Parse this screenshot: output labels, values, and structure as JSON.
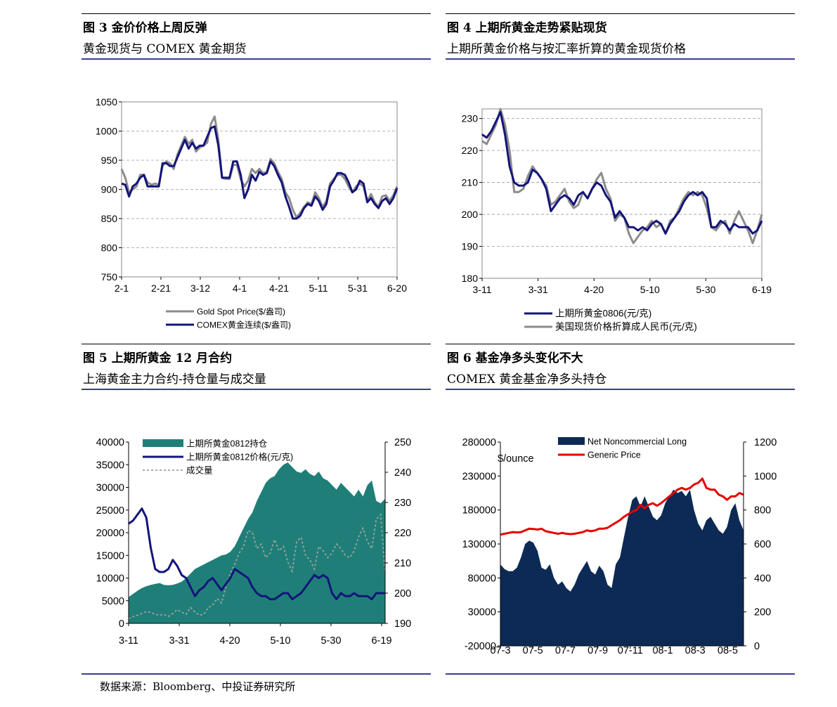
{
  "panels": [
    {
      "title": "图 3 金价价格上周反弹",
      "subtitle": "黄金现货与 COMEX 黄金期货",
      "chart_data": {
        "type": "line",
        "x_ticks": [
          "2-1",
          "2-21",
          "3-12",
          "4-1",
          "4-21",
          "5-11",
          "5-31",
          "6-20"
        ],
        "y_ticks": [
          750,
          800,
          850,
          900,
          950,
          1000,
          1050
        ],
        "ylim": [
          750,
          1050
        ],
        "grid": true,
        "legend_position": "bottom",
        "series": [
          {
            "name": "Gold Spot Price($/盎司)",
            "color": "#8c8c8c",
            "values": [
              935,
              920,
              895,
              900,
              905,
              925,
              925,
              912,
              908,
              910,
              908,
              940,
              948,
              945,
              935,
              960,
              975,
              990,
              978,
              985,
              965,
              972,
              975,
              980,
              1012,
              1025,
              985,
              920,
              918,
              918,
              942,
              942,
              918,
              905,
              915,
              935,
              928,
              935,
              928,
              930,
              952,
              945,
              930,
              918,
              895,
              885,
              865,
              852,
              860,
              870,
              878,
              875,
              895,
              885,
              870,
              880,
              910,
              918,
              925,
              925,
              918,
              905,
              895,
              905,
              910,
              905,
              880,
              892,
              878,
              870,
              888,
              890,
              880,
              890,
              905
            ]
          },
          {
            "name": "COMEX黄金连续($/盎司)",
            "color": "#14147a",
            "values": [
              910,
              908,
              888,
              905,
              910,
              920,
              925,
              905,
              905,
              905,
              905,
              945,
              945,
              940,
              940,
              955,
              970,
              985,
              970,
              980,
              970,
              975,
              975,
              990,
              1005,
              1008,
              975,
              920,
              920,
              920,
              948,
              948,
              925,
              885,
              900,
              925,
              915,
              930,
              925,
              928,
              948,
              940,
              925,
              912,
              888,
              870,
              850,
              850,
              855,
              868,
              875,
              872,
              888,
              880,
              865,
              875,
              905,
              915,
              928,
              928,
              925,
              912,
              895,
              900,
              915,
              910,
              878,
              885,
              875,
              868,
              880,
              885,
              875,
              885,
              902
            ]
          }
        ]
      }
    },
    {
      "title": "图 4 上期所黄金走势紧贴现货",
      "subtitle": "上期所黄金价格与按汇率折算的黄金现货价格",
      "chart_data": {
        "type": "line",
        "x_ticks": [
          "3-11",
          "3-31",
          "4-20",
          "5-10",
          "5-30",
          "6-19"
        ],
        "y_ticks": [
          180,
          190,
          200,
          210,
          220,
          230
        ],
        "ylim": [
          180,
          233
        ],
        "grid": true,
        "legend_position": "bottom",
        "series": [
          {
            "name": "上期所黄金0806(元/克)",
            "color": "#14147a",
            "values": [
              225,
              224,
              226,
              229,
              232,
              225,
              215,
              210,
              209,
              209,
              210,
              214,
              213,
              211,
              208,
              201,
              203,
              205,
              206,
              205,
              203,
              206,
              207,
              205,
              208,
              210,
              209,
              206,
              204,
              199,
              201,
              199,
              196,
              196,
              195,
              196,
              195,
              197,
              198,
              197,
              194,
              197,
              199,
              201,
              204,
              206,
              207,
              206,
              207,
              205,
              196,
              196,
              198,
              197,
              195,
              197,
              196,
              196,
              196,
              194,
              195,
              198
            ]
          },
          {
            "name": "美国现货价格折算成人民币(元/克)",
            "color": "#8c8c8c",
            "values": [
              223,
              222,
              225,
              228,
              233,
              228,
              220,
              207,
              207,
              208,
              212,
              215,
              213,
              211,
              209,
              203,
              204,
              206,
              208,
              204,
              202,
              203,
              207,
              205,
              208,
              211,
              213,
              208,
              205,
              198,
              200,
              199,
              194,
              191,
              193,
              195,
              196,
              198,
              196,
              197,
              194,
              198,
              199,
              202,
              205,
              207,
              206,
              207,
              206,
              202,
              196,
              195,
              197,
              198,
              194,
              198,
              201,
              198,
              195,
              191,
              195,
              200
            ]
          }
        ]
      }
    },
    {
      "title": "图 5 上期所黄金 12 月合约",
      "subtitle": "上海黄金主力合约-持仓量与成交量",
      "chart_data": {
        "type": "area",
        "x_ticks": [
          "3-11",
          "3-31",
          "4-20",
          "5-10",
          "5-30",
          "6-19"
        ],
        "y_ticks_left": [
          0,
          5000,
          10000,
          15000,
          20000,
          25000,
          30000,
          35000,
          40000
        ],
        "y_ticks_right": [
          190,
          200,
          210,
          220,
          230,
          240,
          250
        ],
        "ylim_left": [
          0,
          40000
        ],
        "ylim_right": [
          190,
          250
        ],
        "legend_position": "top",
        "series": [
          {
            "name": "上期所黄金0812持仓",
            "color": "#1f7f78",
            "axis": "left",
            "values": [
              5800,
              6500,
              7200,
              7800,
              8200,
              8500,
              8700,
              8900,
              8500,
              8400,
              8500,
              8800,
              9200,
              10000,
              11000,
              12000,
              12500,
              13000,
              13500,
              14000,
              14500,
              15000,
              15200,
              15800,
              17000,
              19000,
              21000,
              23000,
              24500,
              27000,
              29000,
              31000,
              32000,
              32500,
              34000,
              35000,
              35500,
              34500,
              33500,
              33200,
              34000,
              33000,
              32500,
              33500,
              32000,
              31500,
              30500,
              29500,
              31000,
              30000,
              29000,
              28000,
              29500,
              28000,
              30500,
              31500,
              27000,
              26500,
              27500
            ]
          },
          {
            "name": "上期所黄金0812价格(元/克)",
            "color": "#14147a",
            "axis": "right",
            "values": [
              223,
              224,
              226,
              228,
              225,
              215,
              208,
              207,
              207,
              208,
              211,
              209,
              206,
              205,
              202,
              199,
              201,
              202,
              204,
              205,
              203,
              201,
              203,
              205,
              208,
              207,
              206,
              205,
              202,
              200,
              199,
              199,
              198,
              198,
              199,
              200,
              200,
              198,
              199,
              200,
              202,
              204,
              206,
              205,
              206,
              205,
              200,
              198,
              200,
              199,
              199,
              200,
              199,
              199,
              199,
              198,
              200,
              200,
              200
            ]
          },
          {
            "name": "成交量",
            "color": "#a0a0a0",
            "axis": "left",
            "values": [
              1000,
              1500,
              1800,
              2200,
              2600,
              2400,
              2000,
              1800,
              2000,
              1500,
              2200,
              3000,
              2500,
              2000,
              3500,
              2500,
              1800,
              2000,
              3500,
              4000,
              5500,
              4500,
              8000,
              11000,
              13000,
              15500,
              17000,
              20500,
              20000,
              16500,
              17500,
              14500,
              15500,
              18500,
              16000,
              17000,
              13500,
              11500,
              18000,
              19000,
              15000,
              14000,
              12000,
              17000,
              16000,
              14500,
              15500,
              17500,
              16500,
              15000,
              14500,
              16000,
              19000,
              21000,
              18000,
              16500,
              23000,
              24000,
              11000
            ]
          }
        ]
      }
    },
    {
      "title": "图 6 基金净多头变化不大",
      "subtitle": "COMEX 黄金基金净多头持仓",
      "chart_data": {
        "type": "area",
        "x_ticks": [
          "07-3",
          "07-5",
          "07-7",
          "07-9",
          "07-11",
          "08-1",
          "08-3",
          "08-5"
        ],
        "y_ticks_left": [
          -20000,
          30000,
          80000,
          130000,
          180000,
          230000,
          280000
        ],
        "y_ticks_right": [
          0,
          200,
          400,
          600,
          800,
          1000,
          1200
        ],
        "ylim_left": [
          -20000,
          280000
        ],
        "ylim_right": [
          0,
          1200
        ],
        "left_axis_label": "$/ounce",
        "legend_position": "top",
        "series": [
          {
            "name": "Net Noncommercial Long",
            "color": "#0c2a55",
            "axis": "left",
            "values": [
              100000,
              93000,
              90000,
              90000,
              95000,
              110000,
              130000,
              135000,
              132000,
              120000,
              95000,
              92000,
              100000,
              80000,
              70000,
              75000,
              65000,
              60000,
              70000,
              85000,
              95000,
              105000,
              90000,
              85000,
              98000,
              90000,
              70000,
              65000,
              100000,
              110000,
              140000,
              170000,
              195000,
              200000,
              185000,
              200000,
              185000,
              170000,
              165000,
              172000,
              190000,
              200000,
              210000,
              205000,
              208000,
              200000,
              210000,
              180000,
              160000,
              150000,
              165000,
              170000,
              160000,
              150000,
              145000,
              155000,
              180000,
              190000,
              165000,
              150000
            ]
          },
          {
            "name": "Generic Price",
            "color": "#e60000",
            "axis": "right",
            "values": [
              655,
              660,
              665,
              670,
              668,
              670,
              680,
              690,
              688,
              685,
              690,
              675,
              670,
              665,
              660,
              665,
              660,
              658,
              660,
              665,
              670,
              680,
              675,
              680,
              690,
              690,
              695,
              710,
              725,
              740,
              760,
              775,
              790,
              800,
              830,
              810,
              830,
              840,
              825,
              840,
              860,
              880,
              900,
              920,
              930,
              920,
              930,
              950,
              960,
              985,
              930,
              920,
              920,
              890,
              880,
              860,
              880,
              880,
              900,
              890
            ]
          }
        ]
      }
    }
  ],
  "footer": {
    "source": "数据来源：Bloomberg、中投证券研究所"
  }
}
